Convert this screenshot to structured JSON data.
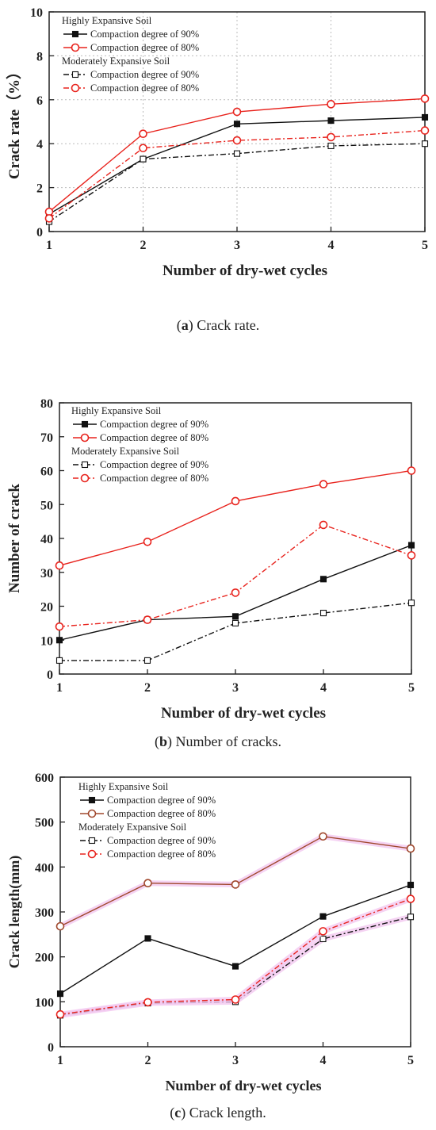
{
  "chart_data": [
    {
      "type": "line",
      "caption_letter": "a",
      "caption_text": "Crack rate.",
      "xlabel": "Number of dry-wet cycles",
      "ylabel": "Crack rate（%）",
      "xlim": [
        1,
        5
      ],
      "ylim": [
        0,
        10
      ],
      "xticks": [
        1,
        2,
        3,
        4,
        5
      ],
      "yticks": [
        0,
        2,
        4,
        6,
        8,
        10
      ],
      "grid": "dotted",
      "legend_position": "top-left",
      "legend_groups": [
        "Highly Expansive Soil",
        "Moderately Expansive Soil"
      ],
      "x": [
        1,
        2,
        3,
        4,
        5
      ],
      "series": [
        {
          "name": "Compaction degree of 90%",
          "group": 0,
          "values": [
            0.8,
            3.3,
            4.9,
            5.05,
            5.2
          ]
        },
        {
          "name": "Compaction degree of 80%",
          "group": 0,
          "values": [
            0.9,
            4.45,
            5.45,
            5.8,
            6.05
          ]
        },
        {
          "name": "Compaction degree of 90%",
          "group": 1,
          "values": [
            0.45,
            3.3,
            3.55,
            3.9,
            4.0
          ]
        },
        {
          "name": "Compaction degree of 80%",
          "group": 1,
          "values": [
            0.6,
            3.8,
            4.15,
            4.3,
            4.6
          ]
        }
      ]
    },
    {
      "type": "line",
      "caption_letter": "b",
      "caption_text": "Number of cracks.",
      "xlabel": "Number of dry-wet cycles",
      "ylabel": "Number of crack",
      "xlim": [
        1,
        5
      ],
      "ylim": [
        0,
        80
      ],
      "xticks": [
        1,
        2,
        3,
        4,
        5
      ],
      "yticks": [
        0,
        10,
        20,
        30,
        40,
        50,
        60,
        70,
        80
      ],
      "grid": "none",
      "legend_position": "top-left",
      "legend_groups": [
        "Highly Expansive Soil",
        "Moderately Expansive Soil"
      ],
      "x": [
        1,
        2,
        3,
        4,
        5
      ],
      "series": [
        {
          "name": "Compaction degree of 90%",
          "group": 0,
          "values": [
            10,
            16,
            17,
            28,
            38
          ]
        },
        {
          "name": "Compaction degree of 80%",
          "group": 0,
          "values": [
            32,
            39,
            51,
            56,
            60
          ]
        },
        {
          "name": "Compaction degree of 90%",
          "group": 1,
          "values": [
            4,
            4,
            15,
            18,
            21
          ]
        },
        {
          "name": "Compaction degree of 80%",
          "group": 1,
          "values": [
            14,
            16,
            24,
            44,
            35
          ]
        }
      ]
    },
    {
      "type": "line",
      "caption_letter": "c",
      "caption_text": "Crack length.",
      "xlabel": "Number of dry-wet cycles",
      "ylabel": "Crack length(mm)",
      "xlim": [
        1,
        5
      ],
      "ylim": [
        0,
        600
      ],
      "xticks": [
        1,
        2,
        3,
        4,
        5
      ],
      "yticks": [
        0,
        100,
        200,
        300,
        400,
        500,
        600
      ],
      "grid": "none",
      "legend_position": "top-left",
      "legend_groups": [
        "Highly Expansive Soil",
        "Moderately Expansive Soil"
      ],
      "x": [
        1,
        2,
        3,
        4,
        5
      ],
      "series": [
        {
          "name": "Compaction degree of 90%",
          "group": 0,
          "values": [
            118,
            241,
            179,
            290,
            360
          ]
        },
        {
          "name": "Compaction degree of 80%",
          "group": 0,
          "values": [
            268,
            364,
            361,
            468,
            441
          ]
        },
        {
          "name": "Compaction degree of 90%",
          "group": 1,
          "values": [
            70,
            97,
            100,
            240,
            289
          ]
        },
        {
          "name": "Compaction degree of 80%",
          "group": 1,
          "values": [
            72,
            99,
            105,
            257,
            329
          ]
        }
      ]
    }
  ],
  "colors": {
    "highly_90": "#111111",
    "highly_80_ab": "#e8231d",
    "highly_80_c": "#a0482d",
    "moderate_90": "#111111",
    "moderate_80": "#e8231d",
    "glow": "#f3c8f0"
  }
}
